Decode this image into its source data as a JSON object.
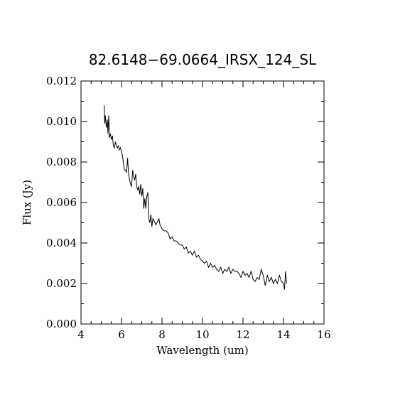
{
  "chart_data": {
    "type": "line",
    "title": "82.6148−69.0664_IRSX_124_SL",
    "xlabel": "Wavelength (um)",
    "ylabel": "Flux (Jy)",
    "xlim": [
      4,
      16
    ],
    "ylim": [
      0,
      0.012
    ],
    "x_ticks": [
      4,
      6,
      8,
      10,
      12,
      14,
      16
    ],
    "x_tick_labels": [
      "4",
      "6",
      "8",
      "10",
      "12",
      "14",
      "16"
    ],
    "y_ticks": [
      0,
      0.002,
      0.004,
      0.006,
      0.008,
      0.01,
      0.012
    ],
    "y_tick_labels": [
      "0.000",
      "0.002",
      "0.004",
      "0.006",
      "0.008",
      "0.010",
      "0.012"
    ],
    "grid": false,
    "line_color": "#000000",
    "series": [
      {
        "x": [
          5.15,
          5.17,
          5.2,
          5.25,
          5.3,
          5.33,
          5.37,
          5.4,
          5.45,
          5.5,
          5.55,
          5.6,
          5.65,
          5.7,
          5.75,
          5.8,
          5.85,
          5.9,
          5.95,
          6.0,
          6.05,
          6.1,
          6.15,
          6.2,
          6.25,
          6.3,
          6.35,
          6.4,
          6.45,
          6.5,
          6.55,
          6.6,
          6.65,
          6.7,
          6.75,
          6.8,
          6.85,
          6.9,
          6.95,
          7.0,
          7.05,
          7.1,
          7.15,
          7.2,
          7.25,
          7.3,
          7.35,
          7.4,
          7.45,
          7.5,
          7.55,
          7.6,
          7.65,
          7.7,
          7.75,
          7.8,
          7.85,
          7.9,
          7.95,
          8.0,
          8.1,
          8.2,
          8.3,
          8.4,
          8.5,
          8.6,
          8.7,
          8.8,
          8.9,
          9.0,
          9.1,
          9.2,
          9.3,
          9.4,
          9.5,
          9.6,
          9.7,
          9.8,
          9.9,
          10.0,
          10.1,
          10.2,
          10.3,
          10.4,
          10.5,
          10.6,
          10.7,
          10.8,
          10.9,
          11.0,
          11.1,
          11.2,
          11.3,
          11.4,
          11.5,
          11.6,
          11.7,
          11.8,
          11.9,
          12.0,
          12.1,
          12.2,
          12.3,
          12.4,
          12.5,
          12.6,
          12.7,
          12.8,
          12.9,
          13.0,
          13.1,
          13.2,
          13.3,
          13.4,
          13.5,
          13.6,
          13.7,
          13.8,
          13.9,
          14.0,
          14.05,
          14.1,
          14.15
        ],
        "values": [
          0.0108,
          0.0099,
          0.0103,
          0.0097,
          0.0101,
          0.0094,
          0.0103,
          0.0092,
          0.0094,
          0.0091,
          0.0093,
          0.0088,
          0.0087,
          0.009,
          0.0088,
          0.0087,
          0.0088,
          0.0086,
          0.0087,
          0.0085,
          0.0083,
          0.0079,
          0.0076,
          0.0076,
          0.0075,
          0.0082,
          0.0074,
          0.0071,
          0.0069,
          0.0068,
          0.0076,
          0.0073,
          0.0071,
          0.0074,
          0.0068,
          0.0066,
          0.0068,
          0.0064,
          0.0069,
          0.0063,
          0.0067,
          0.0057,
          0.0062,
          0.0057,
          0.0063,
          0.0065,
          0.0052,
          0.005,
          0.0054,
          0.0048,
          0.0052,
          0.0051,
          0.005,
          0.0049,
          0.005,
          0.0051,
          0.0052,
          0.0049,
          0.0048,
          0.0047,
          0.0046,
          0.0046,
          0.0045,
          0.0042,
          0.0043,
          0.0041,
          0.0041,
          0.004,
          0.0039,
          0.0039,
          0.0037,
          0.0038,
          0.0035,
          0.0036,
          0.0034,
          0.0036,
          0.0033,
          0.0034,
          0.0032,
          0.0031,
          0.003,
          0.0031,
          0.0028,
          0.003,
          0.0028,
          0.0029,
          0.0027,
          0.0026,
          0.0028,
          0.0025,
          0.0027,
          0.0026,
          0.0028,
          0.0025,
          0.0027,
          0.0026,
          0.0026,
          0.0025,
          0.0023,
          0.0026,
          0.0024,
          0.0025,
          0.0023,
          0.0026,
          0.0022,
          0.0021,
          0.0023,
          0.0022,
          0.0027,
          0.0024,
          0.0019,
          0.0024,
          0.0021,
          0.0023,
          0.002,
          0.0022,
          0.002,
          0.0024,
          0.0021,
          0.002,
          0.0017,
          0.0026,
          0.002
        ]
      }
    ]
  }
}
